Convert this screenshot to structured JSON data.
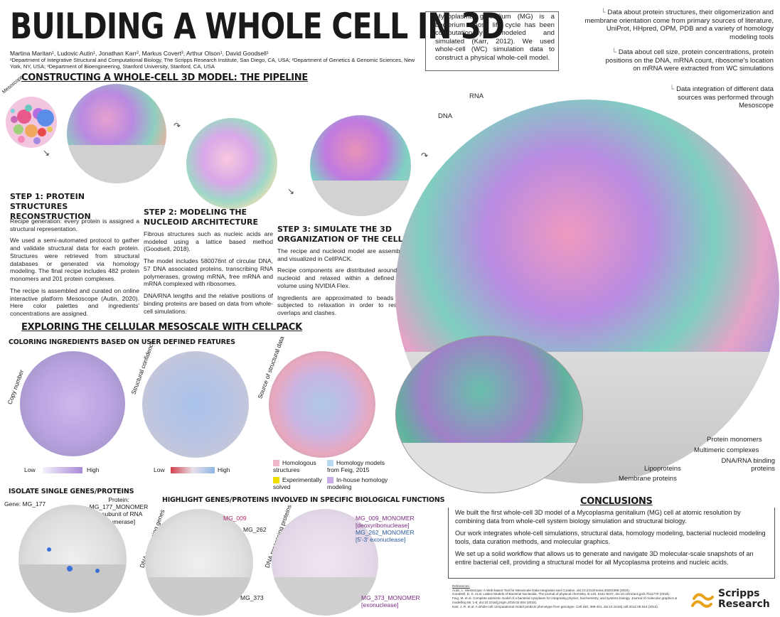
{
  "header": {
    "title": "BUILDING A WHOLE CELL IN 3D",
    "authors": "Martina Maritan¹, Ludovic Autin¹, Jonathan Karr², Markus Covert³, Arthur Olson¹, David Goodsell¹",
    "affiliations": "¹Department of Integrative Structural and Computational Biology, The Scripps Research Institute, San Diego, CA, USA; ²Department of Genetics & Genomic Sciences, New York, NY, USA; ³Department of Bioengineering, Stanford University, Stanford, CA, USA"
  },
  "intro": {
    "text": "Mycoplasma genitalium (MG) is a bacterium whose life cycle has been computationally modeled and simulated (Karr, 2012). We used whole-cell (WC) simulation data to construct a physical whole-cell model."
  },
  "sources": {
    "note1": "Data about protein structures, their oligomerization and membrane orientation  come from primary sources of literature, UniProt, HHpred, OPM, PDB and a variety of homology modeling tools",
    "note2": "Data about cell size, protein concentrations, protein positions on the DNA, mRNA count, ribosome's location on mRNA were extracted from WC simulations",
    "note3": "Data integration of different data sources was performed through Mesoscope"
  },
  "pipeline": {
    "heading": "CONSTRUCTING A WHOLE-CELL 3D MODEL: THE PIPELINE",
    "mesoscope_label": "Mesoscope",
    "step1": {
      "title": "STEP 1:  PROTEIN STRUCTURES RECONSTRUCTION",
      "p1": "Recipe generation: every protein is assigned a structural representation.",
      "p2": "We used a semi-automated protocol to gather and validate structural data for each protein. Structures were retrieved from structural databases or generated via homology modeling. The final recipe includes 482 protein monomers and 201 protein complexes.",
      "p3": "The recipe is assembled and curated on online interactive platform Mesoscope (Autin, 2020). Here color palettes and ingredients' concentrations are assigned."
    },
    "step2": {
      "title": "STEP 2: MODELING THE NUCLEOID ARCHITECTURE",
      "p1": "Fibrous structures such as nucleic acids are modeled using a lattice based method (Goodsell, 2018).",
      "p2": "The model includes 580076nt of circular DNA, 57 DNA associated proteins, transcribing RNA polymerases, growing mRNA, free mRNA and mRNA complexed with ribosomes.",
      "p3": "DNA/RNA lengths and the relative positions of binding proteins are based on data from whole-cell simulations."
    },
    "step3": {
      "title": "STEP 3: SIMULATE THE 3D ORGANIZATION OF THE CELL",
      "p1": "The recipe and nucleoid model are assembled and visualized in CellPACK.",
      "p2": "Recipe components are distributed around the nucleoid and relaxed within a defined cell volume using NVIDIA Flex.",
      "p3": "Ingredients are approximated to beads and subjected to relaxation in order to resolve overlaps and clashes."
    }
  },
  "big_cell": {
    "label_rna": "RNA",
    "label_dna": "DNA",
    "label_protein_monomers": "Protein monomers",
    "label_multimeric": "Multimeric complexes",
    "label_dna_rna_binding": "DNA/RNA binding proteins",
    "label_lipoproteins": "Lipoproteins",
    "label_membrane": "Membrane proteins"
  },
  "mesoscale": {
    "heading": "EXPLORING THE CELLULAR MESOSCALE WITH CELLPACK",
    "coloring_heading": "COLORING INGREDIENTS BASED ON USER DEFINED FEATURES",
    "copy_number": "Copy number",
    "structural_confidence": "Structural confidence",
    "source_structural": "Source of structural data",
    "low": "Low",
    "high": "High",
    "legend_homologous": "Homologous structures",
    "legend_experimental": "Experimentally solved",
    "legend_feig": "Homology models from Feig, 2015",
    "legend_inhouse": "In-house homology modeling"
  },
  "isolate": {
    "heading": "ISOLATE SINGLE GENES/PROTEINS",
    "gene": "Gene: MG_177",
    "protein_line1": "Protein:",
    "protein_line2": "MG_177_MONOMER",
    "protein_line3": "[α subunit of RNA polymerase]"
  },
  "highlight": {
    "heading": "HIGHLIGHT GENES/PROTEINS  INVOLVED IN SPECIFIC BIOLOGICAL FUNCTIONS",
    "dna_genes": "DNA processing genes",
    "dna_proteins": "DNA processing proteins",
    "mg009": "MG_009",
    "mg262": "MG_262",
    "mg373": "MG_373",
    "mg009m": "MG_009_MONOMER",
    "mg009m_desc": "[deoxyribonuclease]",
    "mg262m": "MG_262_MONOMER",
    "mg262m_desc": "[5'-3' exonuclease]",
    "mg373m": "MG_373_MONOMER",
    "mg373m_desc": "[exonuclease]"
  },
  "conclusions": {
    "heading": "CONCLUSIONS",
    "p1": "We built the first whole-cell 3D model of a Mycoplasma genitalium (MG) cell at atomic resolution by combining data from whole-cell system biology simulation and structural biology.",
    "p2": "Our work integrates whole-cell simulations, structural data, homology modeling, bacterial nucleoid modeling tools, data curation methods, and molecular graphics.",
    "p3": "We set up a solid workflow that allows us to generate and navigate 3D molecular-scale snapshots of an entire bacterial cell, providing a structural model for all Mycoplasma proteins and nucleic acids."
  },
  "references": {
    "heading": "References:",
    "r1": "Autin, L. Mesoscope: A Web-based Tool for Mesoscale Data Integration and Curation. doi:10.2312/molva.20201098 (2020).",
    "r2": "Goodsell, D. S. et al. Lattice Models of Bacterial Nucleoids. The journal of physical chemistry. B 122, 5441-5447, doi:10.1021/acs.jpcb.7b11770 (2018).",
    "r3": "Feig, M. et al. Complete atomistic model of a bacterial cytoplasm for integrating physics, biochemistry, and systems biology. Journal of molecular graphics & modelling 58, 1-9, doi:10.1016/j.jmgm.2015.02.004 (2015).",
    "r4": "Karr, J. R. et al. A whole-cell computational model predicts phenotype from genotype. Cell 150, 389-401, doi:10.1016/j.cell.2012.05.044 (2012)."
  },
  "logo": {
    "line1": "Scripps",
    "line2": "Research",
    "color": "#e8a21c"
  },
  "colors": {
    "proteins_purple": "#a98ad8",
    "proteins_pink": "#e59ac0",
    "dna_teal": "#6cc3b0",
    "membrane_grey": "#bdbdbd",
    "low_high_red": "#d2404a",
    "low_high_blue": "#8fb7e6"
  }
}
